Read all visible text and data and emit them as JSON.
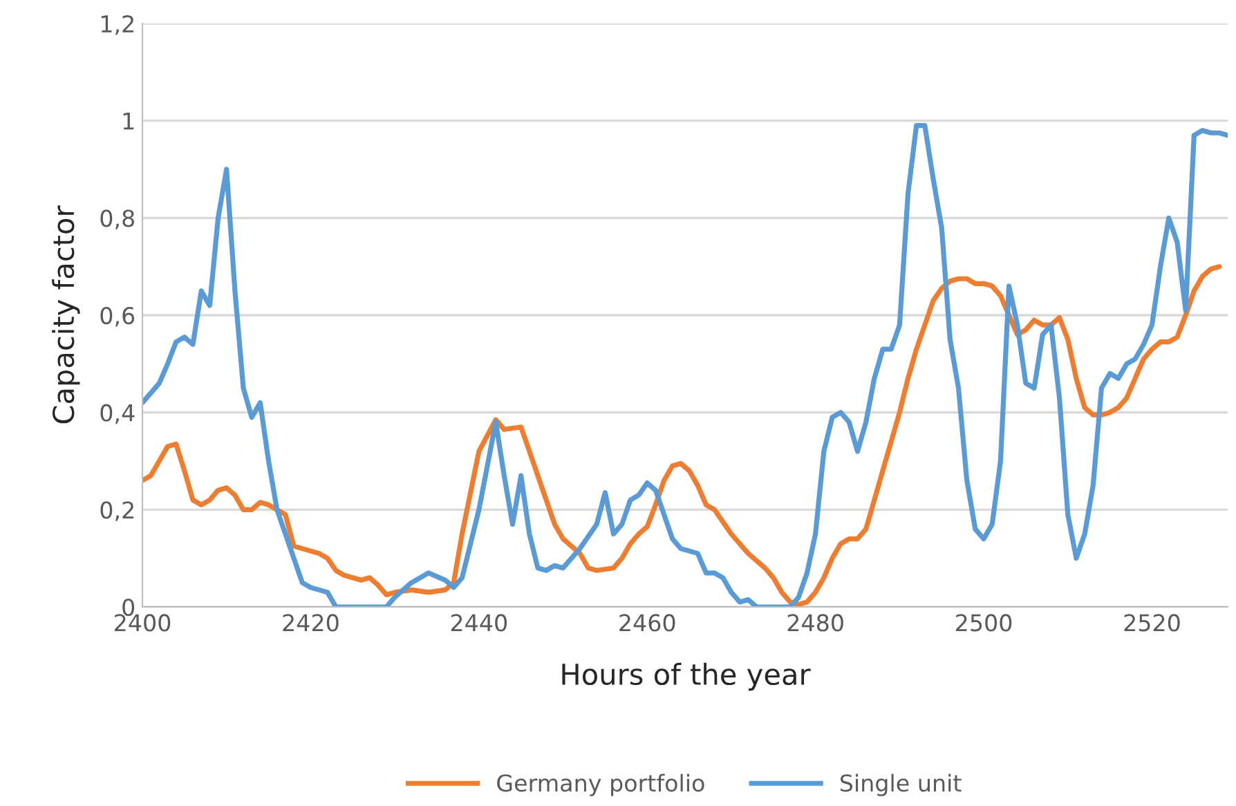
{
  "chart_data": {
    "type": "line",
    "xlabel": "Hours of the year",
    "ylabel": "Capacity factor",
    "xlim": [
      2400,
      2529
    ],
    "xticks": [
      2400,
      2420,
      2440,
      2460,
      2480,
      2500,
      2520
    ],
    "ylim": [
      0,
      1.2
    ],
    "yticks": [
      {
        "value": 0,
        "label": "0"
      },
      {
        "value": 0.2,
        "label": "0,2"
      },
      {
        "value": 0.4,
        "label": "0,4"
      },
      {
        "value": 0.6,
        "label": "0,6"
      },
      {
        "value": 0.8,
        "label": "0,8"
      },
      {
        "value": 1,
        "label": "1"
      },
      {
        "value": 1.2,
        "label": "1,2"
      }
    ],
    "grid": "y",
    "legend": "bottom",
    "marker": "none",
    "line_style": "solid",
    "series": [
      {
        "name": "Germany portfolio",
        "color": "#ed7d31",
        "x": [
          2400,
          2401,
          2402,
          2403,
          2404,
          2405,
          2406,
          2407,
          2408,
          2409,
          2410,
          2411,
          2412,
          2413,
          2414,
          2415,
          2416,
          2417,
          2418,
          2419,
          2420,
          2421,
          2422,
          2423,
          2424,
          2425,
          2426,
          2427,
          2428,
          2429,
          2430,
          2432,
          2434,
          2436,
          2437,
          2438,
          2440,
          2442,
          2443,
          2445,
          2446,
          2448,
          2449,
          2450,
          2452,
          2453,
          2454,
          2456,
          2457,
          2458,
          2459,
          2460,
          2461,
          2462,
          2463,
          2464,
          2465,
          2466,
          2467,
          2468,
          2470,
          2472,
          2474,
          2475,
          2476,
          2477,
          2478,
          2479,
          2480,
          2481,
          2482,
          2483,
          2484,
          2485,
          2486,
          2487,
          2488,
          2489,
          2490,
          2491,
          2492,
          2493,
          2494,
          2495,
          2496,
          2497,
          2498,
          2499,
          2500,
          2501,
          2502,
          2503,
          2504,
          2505,
          2506,
          2507,
          2508,
          2509,
          2510,
          2511,
          2512,
          2513,
          2514,
          2515,
          2516,
          2517,
          2518,
          2519,
          2520,
          2521,
          2522,
          2523,
          2524,
          2525,
          2526,
          2527,
          2528
        ],
        "values": [
          0.26,
          0.27,
          0.3,
          0.33,
          0.335,
          0.28,
          0.22,
          0.21,
          0.22,
          0.24,
          0.245,
          0.23,
          0.2,
          0.2,
          0.215,
          0.21,
          0.2,
          0.19,
          0.125,
          0.12,
          0.115,
          0.11,
          0.1,
          0.075,
          0.065,
          0.06,
          0.055,
          0.06,
          0.045,
          0.025,
          0.03,
          0.035,
          0.03,
          0.035,
          0.05,
          0.15,
          0.32,
          0.385,
          0.365,
          0.37,
          0.32,
          0.22,
          0.17,
          0.14,
          0.11,
          0.08,
          0.075,
          0.08,
          0.1,
          0.13,
          0.15,
          0.165,
          0.21,
          0.26,
          0.29,
          0.295,
          0.28,
          0.25,
          0.21,
          0.2,
          0.15,
          0.11,
          0.08,
          0.06,
          0.03,
          0.01,
          0.005,
          0.01,
          0.03,
          0.06,
          0.1,
          0.13,
          0.14,
          0.14,
          0.16,
          0.22,
          0.28,
          0.34,
          0.4,
          0.47,
          0.53,
          0.58,
          0.63,
          0.655,
          0.67,
          0.675,
          0.675,
          0.665,
          0.665,
          0.66,
          0.64,
          0.6,
          0.56,
          0.57,
          0.59,
          0.58,
          0.58,
          0.595,
          0.55,
          0.47,
          0.41,
          0.395,
          0.395,
          0.4,
          0.41,
          0.43,
          0.47,
          0.51,
          0.53,
          0.545,
          0.545,
          0.555,
          0.6,
          0.65,
          0.68,
          0.695,
          0.7
        ]
      },
      {
        "name": "Single unit",
        "color": "#5b9bd5",
        "x": [
          2400,
          2401,
          2402,
          2403,
          2404,
          2405,
          2406,
          2407,
          2408,
          2409,
          2410,
          2411,
          2412,
          2413,
          2414,
          2415,
          2416,
          2417,
          2418,
          2419,
          2420,
          2421,
          2422,
          2423,
          2424,
          2428,
          2429,
          2430,
          2432,
          2434,
          2436,
          2437,
          2438,
          2440,
          2442,
          2443,
          2444,
          2445,
          2446,
          2447,
          2448,
          2449,
          2450,
          2452,
          2454,
          2455,
          2456,
          2457,
          2458,
          2459,
          2460,
          2461,
          2462,
          2463,
          2464,
          2465,
          2466,
          2467,
          2468,
          2469,
          2470,
          2471,
          2472,
          2473,
          2477,
          2478,
          2479,
          2480,
          2481,
          2482,
          2483,
          2484,
          2485,
          2486,
          2487,
          2488,
          2489,
          2490,
          2491,
          2492,
          2493,
          2494,
          2495,
          2496,
          2497,
          2498,
          2499,
          2500,
          2501,
          2502,
          2503,
          2504,
          2505,
          2506,
          2507,
          2508,
          2509,
          2510,
          2511,
          2512,
          2513,
          2514,
          2515,
          2516,
          2517,
          2518,
          2519,
          2520,
          2521,
          2522,
          2523,
          2524,
          2525,
          2526,
          2527,
          2528,
          2529
        ],
        "values": [
          0.42,
          0.44,
          0.46,
          0.5,
          0.545,
          0.555,
          0.54,
          0.65,
          0.62,
          0.8,
          0.9,
          0.65,
          0.45,
          0.39,
          0.42,
          0.3,
          0.2,
          0.15,
          0.1,
          0.05,
          0.04,
          0.035,
          0.03,
          0.0,
          0.0,
          0.0,
          0.0,
          0.02,
          0.05,
          0.07,
          0.055,
          0.04,
          0.06,
          0.2,
          0.38,
          0.27,
          0.17,
          0.27,
          0.15,
          0.08,
          0.075,
          0.085,
          0.08,
          0.12,
          0.17,
          0.235,
          0.15,
          0.17,
          0.22,
          0.23,
          0.255,
          0.24,
          0.19,
          0.14,
          0.12,
          0.115,
          0.11,
          0.07,
          0.07,
          0.06,
          0.03,
          0.01,
          0.015,
          0.0,
          0.0,
          0.02,
          0.07,
          0.15,
          0.32,
          0.39,
          0.4,
          0.38,
          0.32,
          0.38,
          0.47,
          0.53,
          0.53,
          0.58,
          0.85,
          0.99,
          0.99,
          0.88,
          0.78,
          0.55,
          0.45,
          0.26,
          0.16,
          0.14,
          0.17,
          0.3,
          0.66,
          0.58,
          0.46,
          0.45,
          0.56,
          0.58,
          0.43,
          0.19,
          0.1,
          0.15,
          0.25,
          0.45,
          0.48,
          0.47,
          0.5,
          0.51,
          0.54,
          0.58,
          0.7,
          0.8,
          0.75,
          0.61,
          0.97,
          0.98,
          0.975,
          0.975,
          0.97
        ]
      }
    ]
  }
}
